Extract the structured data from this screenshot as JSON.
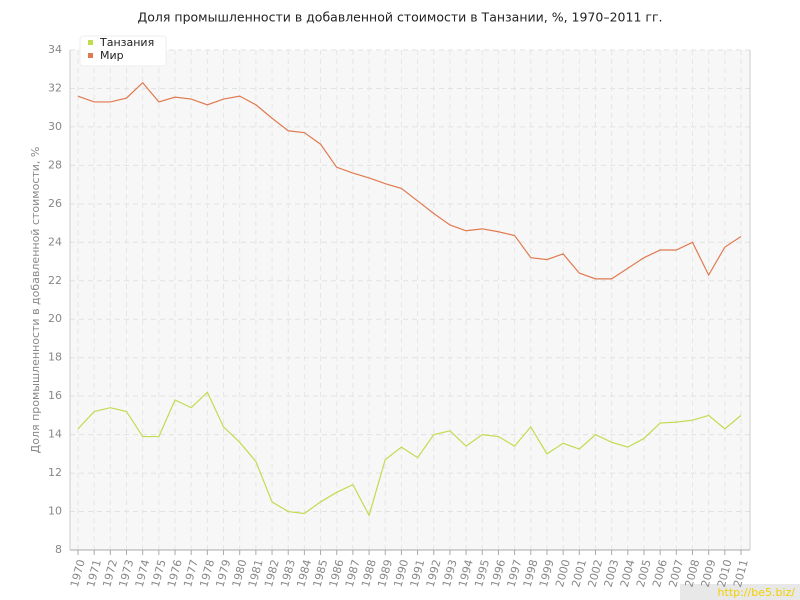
{
  "chart_data": {
    "type": "line",
    "title": "Доля промышленности в добавленной стоимости в Танзании, %, 1970–2011 гг.",
    "y_label": "Доля промышленности в добавленной стоимости, %",
    "categories": [
      "1970",
      "1971",
      "1972",
      "1973",
      "1974",
      "1975",
      "1976",
      "1977",
      "1978",
      "1979",
      "1980",
      "1981",
      "1982",
      "1983",
      "1984",
      "1985",
      "1986",
      "1987",
      "1988",
      "1989",
      "1990",
      "1991",
      "1992",
      "1993",
      "1994",
      "1995",
      "1996",
      "1997",
      "1998",
      "1999",
      "2000",
      "2001",
      "2002",
      "2003",
      "2004",
      "2005",
      "2006",
      "2007",
      "2008",
      "2009",
      "2010",
      "2011"
    ],
    "series": [
      {
        "name": "Танзания",
        "color": "#c0dc50",
        "values": [
          14.3,
          15.2,
          15.4,
          15.2,
          13.9,
          13.9,
          15.8,
          15.4,
          16.2,
          14.4,
          13.6,
          12.6,
          10.5,
          10.0,
          9.9,
          10.5,
          11.0,
          11.4,
          9.8,
          12.7,
          13.35,
          12.8,
          14.0,
          14.2,
          13.4,
          14.0,
          13.9,
          13.4,
          14.4,
          13.0,
          13.55,
          13.25,
          14.0,
          13.6,
          13.35,
          13.8,
          14.6,
          14.65,
          14.75,
          15.0,
          14.3,
          15.0
        ]
      },
      {
        "name": "Мир",
        "color": "#e07a50",
        "values": [
          31.6,
          31.3,
          31.3,
          31.5,
          32.3,
          31.3,
          31.55,
          31.45,
          31.15,
          31.45,
          31.6,
          31.15,
          30.45,
          29.8,
          29.7,
          29.1,
          27.9,
          27.6,
          27.35,
          27.05,
          26.8,
          26.15,
          25.5,
          24.9,
          24.6,
          24.7,
          24.55,
          24.35,
          23.2,
          23.1,
          23.4,
          22.4,
          22.1,
          22.1,
          22.65,
          23.2,
          23.6,
          23.6,
          24.0,
          22.3,
          23.75,
          24.3
        ]
      }
    ],
    "ylim": [
      8,
      34
    ],
    "yticks": [
      8,
      10,
      12,
      14,
      16,
      18,
      20,
      22,
      24,
      26,
      28,
      30,
      32,
      34
    ],
    "grid": true,
    "legend": "top-left"
  },
  "watermark": "http://be5.biz/"
}
